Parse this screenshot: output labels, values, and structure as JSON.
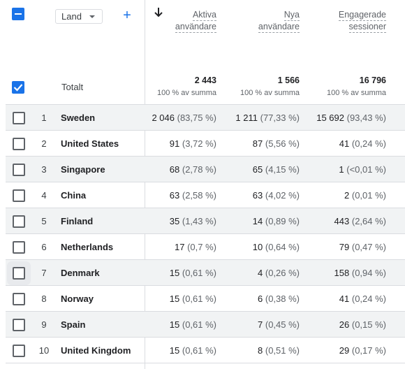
{
  "header": {
    "dimension_dropdown": "Land",
    "columns": [
      {
        "line1": "Aktiva",
        "line2": "användare"
      },
      {
        "line1": "Nya",
        "line2": "användare"
      },
      {
        "line1": "Engagerade",
        "line2": "sessioner"
      }
    ],
    "icons": {
      "add": "plus-icon",
      "sort": "arrow-down-icon",
      "dropdown": "caret-down-icon"
    }
  },
  "totals": {
    "label": "Totalt",
    "values": [
      "2 443",
      "1 566",
      "16 796"
    ],
    "subs": [
      "100 % av summa",
      "100 % av summa",
      "100 % av summa"
    ]
  },
  "rows": [
    {
      "idx": "1",
      "name": "Sweden",
      "c1": "2 046",
      "p1": "(83,75 %)",
      "c2": "1 211",
      "p2": "(77,33 %)",
      "c3": "15 692",
      "p3": "(93,43 %)"
    },
    {
      "idx": "2",
      "name": "United States",
      "c1": "91",
      "p1": "(3,72 %)",
      "c2": "87",
      "p2": "(5,56 %)",
      "c3": "41",
      "p3": "(0,24 %)"
    },
    {
      "idx": "3",
      "name": "Singapore",
      "c1": "68",
      "p1": "(2,78 %)",
      "c2": "65",
      "p2": "(4,15 %)",
      "c3": "1",
      "p3": "(<0,01 %)"
    },
    {
      "idx": "4",
      "name": "China",
      "c1": "63",
      "p1": "(2,58 %)",
      "c2": "63",
      "p2": "(4,02 %)",
      "c3": "2",
      "p3": "(0,01 %)"
    },
    {
      "idx": "5",
      "name": "Finland",
      "c1": "35",
      "p1": "(1,43 %)",
      "c2": "14",
      "p2": "(0,89 %)",
      "c3": "443",
      "p3": "(2,64 %)"
    },
    {
      "idx": "6",
      "name": "Netherlands",
      "c1": "17",
      "p1": "(0,7 %)",
      "c2": "10",
      "p2": "(0,64 %)",
      "c3": "79",
      "p3": "(0,47 %)"
    },
    {
      "idx": "7",
      "name": "Denmark",
      "c1": "15",
      "p1": "(0,61 %)",
      "c2": "4",
      "p2": "(0,26 %)",
      "c3": "158",
      "p3": "(0,94 %)"
    },
    {
      "idx": "8",
      "name": "Norway",
      "c1": "15",
      "p1": "(0,61 %)",
      "c2": "6",
      "p2": "(0,38 %)",
      "c3": "41",
      "p3": "(0,24 %)"
    },
    {
      "idx": "9",
      "name": "Spain",
      "c1": "15",
      "p1": "(0,61 %)",
      "c2": "7",
      "p2": "(0,45 %)",
      "c3": "26",
      "p3": "(0,15 %)"
    },
    {
      "idx": "10",
      "name": "United Kingdom",
      "c1": "15",
      "p1": "(0,61 %)",
      "c2": "8",
      "p2": "(0,51 %)",
      "c3": "29",
      "p3": "(0,17 %)"
    }
  ]
}
